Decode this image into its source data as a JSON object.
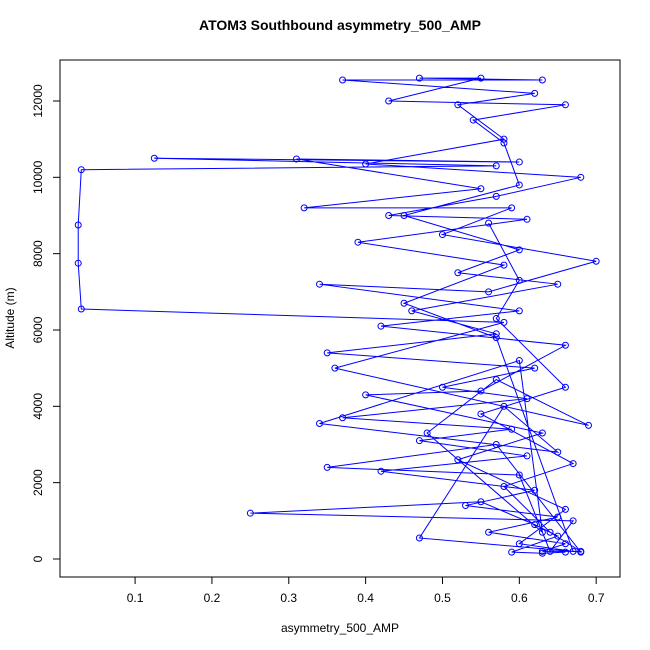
{
  "chart_data": {
    "type": "line",
    "title": "ATOM3 Southbound asymmetry_500_AMP",
    "x_label": "asymmetry_500_AMP",
    "y_label": "Altitude (m)",
    "xlim": [
      0.0023,
      0.731
    ],
    "ylim": [
      -472,
      13074
    ],
    "xticks": [
      0.1,
      0.2,
      0.3,
      0.4,
      0.5,
      0.6,
      0.7
    ],
    "yticks": [
      0,
      2000,
      4000,
      6000,
      8000,
      10000,
      12000
    ],
    "series": [
      {
        "color": "#0000ff",
        "markers": true,
        "x": [
          0.66,
          0.63,
          0.59,
          0.65,
          0.62,
          0.55,
          0.25,
          0.67,
          0.64,
          0.6,
          0.35,
          0.57,
          0.68,
          0.47,
          0.58,
          0.65,
          0.34,
          0.6,
          0.63,
          0.48,
          0.57,
          0.69,
          0.36,
          0.58,
          0.03,
          0.026,
          0.026,
          0.03,
          0.57,
          0.125,
          0.6,
          0.31,
          0.55,
          0.32,
          0.59,
          0.5,
          0.7,
          0.56,
          0.34,
          0.6,
          0.42,
          0.66,
          0.55,
          0.4,
          0.63,
          0.52,
          0.66,
          0.6,
          0.67,
          0.57,
          0.45,
          0.58,
          0.39,
          0.61,
          0.43,
          0.57,
          0.68,
          0.4,
          0.58,
          0.52,
          0.62,
          0.37,
          0.63,
          0.47,
          0.55,
          0.43,
          0.66,
          0.54,
          0.58,
          0.6,
          0.45,
          0.6,
          0.52,
          0.65,
          0.46,
          0.57,
          0.35,
          0.62,
          0.5,
          0.61,
          0.37,
          0.59,
          0.47,
          0.61,
          0.42,
          0.62,
          0.53,
          0.65,
          0.56,
          0.66,
          0.63,
          0.68,
          0.64,
          0.58,
          0.67,
          0.55,
          0.66,
          0.57,
          0.6,
          0.56
        ],
        "values": [
          180,
          150,
          180,
          600,
          900,
          1500,
          1200,
          1000,
          200,
          2200,
          2400,
          3000,
          180,
          550,
          4000,
          2800,
          3550,
          5200,
          700,
          3300,
          4700,
          3500,
          5000,
          6200,
          6550,
          7750,
          8750,
          10200,
          10300,
          10500,
          10400,
          10480,
          9700,
          9200,
          9200,
          8500,
          7800,
          7000,
          7200,
          6500,
          6100,
          5600,
          4400,
          4300,
          3300,
          2600,
          1300,
          400,
          200,
          5800,
          6700,
          7700,
          8300,
          8900,
          9000,
          9500,
          10000,
          10350,
          11000,
          11900,
          12200,
          12550,
          12550,
          12600,
          12600,
          12000,
          11900,
          11500,
          10900,
          9800,
          9000,
          8100,
          7500,
          7200,
          6500,
          5900,
          5400,
          5000,
          4500,
          4200,
          3700,
          3400,
          3100,
          2700,
          2300,
          1800,
          1400,
          1100,
          700,
          400,
          200,
          200,
          700,
          1900,
          2500,
          3800,
          4500,
          6300,
          7300,
          8800
        ]
      }
    ]
  }
}
